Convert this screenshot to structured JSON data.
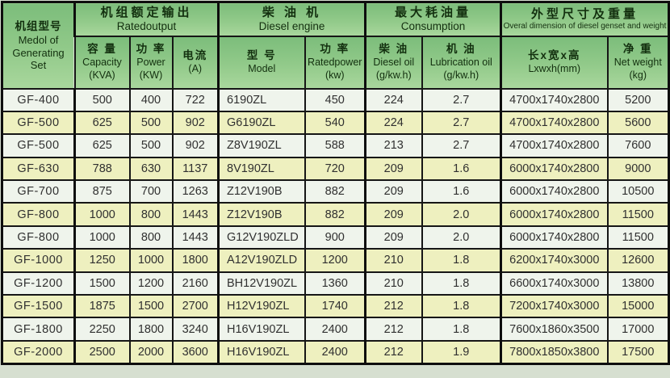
{
  "page": {
    "background": "#d6dfd0",
    "table_border_color": "#0e0e0e",
    "header_green_top": "#7cbd7b",
    "header_green_bottom": "#a9d79d",
    "row_plain_color": "#eff4ec",
    "row_band_color": "#eef0bf"
  },
  "header": {
    "model_col": {
      "zh": "机组型号",
      "en1": "Medol of",
      "en2": "Generating",
      "en3": "Set"
    },
    "groups": [
      {
        "zh": "机组额定输出",
        "en": "Ratedoutput"
      },
      {
        "zh": "柴 油 机",
        "en": "Diesel engine"
      },
      {
        "zh": "最大耗油量",
        "en": "Consumption"
      },
      {
        "zh": "外型尺寸及重量",
        "en": "Overal dimension of diesel genset and weight"
      }
    ],
    "columns": [
      {
        "zh": "容 量",
        "en": "Capacity",
        "unit": "(KVA)"
      },
      {
        "zh": "功 率",
        "en": "Power",
        "unit": "(KW)"
      },
      {
        "zh": "电流",
        "en": "",
        "unit": "(A)"
      },
      {
        "zh": "型 号",
        "en": "Model",
        "unit": ""
      },
      {
        "zh": "功 率",
        "en": "Ratedpower",
        "unit": "(kw)"
      },
      {
        "zh": "柴 油",
        "en": "Diesel oil",
        "unit": "(g/kw.h)"
      },
      {
        "zh": "机 油",
        "en": "Lubrication oil",
        "unit": "(g/kw.h)"
      },
      {
        "zh": "长x宽x高",
        "en": "Lxwxh(mm)",
        "unit": ""
      },
      {
        "zh": "净 重",
        "en": "Net weight",
        "unit": "(kg)"
      }
    ]
  },
  "rows": [
    [
      "GF-400",
      "500",
      "400",
      "722",
      "6190ZL",
      "450",
      "224",
      "2.7",
      "4700x1740x2800",
      "5200"
    ],
    [
      "GF-500",
      "625",
      "500",
      "902",
      "G6190ZL",
      "540",
      "224",
      "2.7",
      "4700x1740x2800",
      "5600"
    ],
    [
      "GF-500",
      "625",
      "500",
      "902",
      "Z8V190ZL",
      "588",
      "213",
      "2.7",
      "4700x1740x2800",
      "7600"
    ],
    [
      "GF-630",
      "788",
      "630",
      "1137",
      "8V190ZL",
      "720",
      "209",
      "1.6",
      "6000x1740x2800",
      "9000"
    ],
    [
      "GF-700",
      "875",
      "700",
      "1263",
      "Z12V190B",
      "882",
      "209",
      "1.6",
      "6000x1740x2800",
      "10500"
    ],
    [
      "GF-800",
      "1000",
      "800",
      "1443",
      "Z12V190B",
      "882",
      "209",
      "2.0",
      "6000x1740x2800",
      "11500"
    ],
    [
      "GF-800",
      "1000",
      "800",
      "1443",
      "G12V190ZLD",
      "900",
      "209",
      "2.0",
      "6000x1740x2800",
      "11500"
    ],
    [
      "GF-1000",
      "1250",
      "1000",
      "1800",
      "A12V190ZLD",
      "1200",
      "210",
      "1.8",
      "6200x1740x3000",
      "12600"
    ],
    [
      "GF-1200",
      "1500",
      "1200",
      "2160",
      "BH12V190ZL",
      "1360",
      "210",
      "1.8",
      "6600x1740x3000",
      "13800"
    ],
    [
      "GF-1500",
      "1875",
      "1500",
      "2700",
      "H12V190ZL",
      "1740",
      "212",
      "1.8",
      "7200x1740x3000",
      "15000"
    ],
    [
      "GF-1800",
      "2250",
      "1800",
      "3240",
      "H16V190ZL",
      "2400",
      "212",
      "1.8",
      "7600x1860x3500",
      "17000"
    ],
    [
      "GF-2000",
      "2500",
      "2000",
      "3600",
      "H16V190ZL",
      "2400",
      "212",
      "1.9",
      "7800x1850x3800",
      "17500"
    ]
  ]
}
